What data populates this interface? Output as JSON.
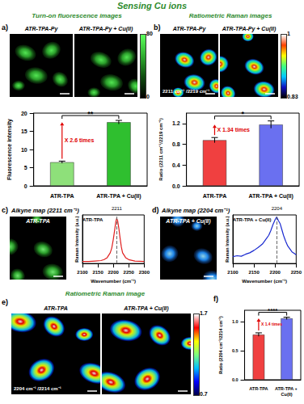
{
  "title": "Sensing Cu ions",
  "image_panels": [
    {
      "label": "a)",
      "heading": "Turn-on fluorescence images",
      "images": [
        {
          "caption": "ATR-TPA-Py"
        },
        {
          "caption": "ATR-TPA-Py + Cu(II)"
        }
      ],
      "colorbar": {
        "range": [
          0,
          80
        ],
        "ticks": [
          0,
          80
        ],
        "colors": [
          "#000000",
          "#0f4d0f",
          "#2fae2f",
          "#5cff5c"
        ]
      }
    },
    {
      "label": "b)",
      "heading": "Ratiometric Raman images",
      "images": [
        {
          "caption": "ATR-TPA-Py",
          "note": "2211 cm⁻¹ /2219 cm⁻¹"
        },
        {
          "caption": "ATR-TPA-Py + Cu(II)"
        }
      ],
      "colorbar": {
        "range": [
          0.83,
          1
        ],
        "ticks": [
          0.83,
          1
        ],
        "colors": [
          "#000000",
          "#1010c0",
          "#00c8ff",
          "#40ff80",
          "#ffff00",
          "#ff4000",
          "#ffffff"
        ]
      }
    },
    {
      "label": "c)",
      "heading": "Alkyne map (2211 cm⁻¹)",
      "images": [
        {
          "caption": "ATR-TPA"
        }
      ]
    },
    {
      "label": "d)",
      "heading": "Alkyne map (2204 cm⁻¹)",
      "images": [
        {
          "caption": "ATR-TPA + Cu(II)"
        }
      ]
    },
    {
      "label": "e)",
      "heading": "Ratiometric Raman image",
      "images": [
        {
          "caption": "ATR-TPA",
          "note": "2204 cm⁻¹ /2214 cm⁻¹"
        },
        {
          "caption": "ATR-TPA + Cu(II)"
        }
      ],
      "colorbar": {
        "range": [
          0.7,
          1.7
        ],
        "ticks": [
          0.7,
          1.7
        ],
        "colors": [
          "#00004a",
          "#0000ff",
          "#00bfff",
          "#7fff7f",
          "#ffff00",
          "#ff0000",
          "#ffffff"
        ]
      }
    }
  ],
  "chart_data": [
    {
      "type": "bar",
      "ylabel": "Fluorescence intensity",
      "categories": [
        "ATR-TPA",
        "ATR-TPA + Cu(II)"
      ],
      "values": [
        6.5,
        17.5
      ],
      "errors": [
        0.3,
        0.5
      ],
      "colors": [
        "#8ee07a",
        "#2fbf2f"
      ],
      "significance": "**",
      "fold_change_label": "X 2.6 times",
      "ylim": [
        0,
        20
      ],
      "yticks": [
        0,
        5,
        10,
        15,
        20
      ],
      "grid": false
    },
    {
      "type": "bar",
      "ylabel": "Ratio (2211 cm⁻¹/2219 cm⁻¹)",
      "categories": [
        "ATR-TPA",
        "ATR-TPA + Cu(II)"
      ],
      "values": [
        0.88,
        1.18
      ],
      "errors": [
        0.05,
        0.07
      ],
      "colors": [
        "#f04040",
        "#6a70f0"
      ],
      "significance": "*",
      "fold_change_label": "X 1.34 times",
      "ylim": [
        0,
        1.4
      ],
      "yticks": [
        {
          "value": 0,
          "label": "0.0"
        },
        {
          "value": 0.4,
          "label": "0.4"
        },
        {
          "value": 0.8,
          "label": "0.8"
        },
        {
          "value": 1.2,
          "label": "1.2"
        }
      ],
      "grid": false
    },
    {
      "type": "line",
      "xlabel": "Wavenumber (cm⁻¹)",
      "ylabel": "Raman Intensity (a.u.)",
      "x": [
        2100,
        2120,
        2140,
        2160,
        2170,
        2180,
        2190,
        2195,
        2200,
        2205,
        2208,
        2211,
        2214,
        2218,
        2222,
        2226,
        2230,
        2240,
        2250,
        2270,
        2300
      ],
      "series": [
        {
          "name": "ATR-TPA",
          "color": "#e02020",
          "values": [
            4,
            4,
            5,
            6,
            8,
            12,
            22,
            32,
            50,
            72,
            86,
            93,
            88,
            72,
            52,
            34,
            22,
            12,
            8,
            5,
            4
          ]
        }
      ],
      "peak": {
        "x": 2211,
        "label": "2211"
      },
      "xlim": [
        2100,
        2300
      ],
      "xticks": [
        2100,
        2150,
        2200,
        2250,
        2300
      ],
      "ylim": [
        0,
        100
      ],
      "tick_labels": "x",
      "grid": false
    },
    {
      "type": "line",
      "xlabel": "Wavenumber (cm⁻¹)",
      "ylabel": "Raman Intensity (a.u.)",
      "x": [
        2100,
        2110,
        2120,
        2130,
        2140,
        2150,
        2160,
        2170,
        2180,
        2185,
        2190,
        2195,
        2200,
        2204,
        2208,
        2212,
        2216,
        2220,
        2225,
        2230,
        2240,
        2250
      ],
      "series": [
        {
          "name": "ATR-TPA + Cu(II)",
          "color": "#1a2ad0",
          "values": [
            14,
            16,
            15,
            19,
            22,
            27,
            33,
            40,
            52,
            58,
            68,
            80,
            90,
            96,
            88,
            82,
            70,
            58,
            46,
            36,
            24,
            18
          ]
        }
      ],
      "peak": {
        "x": 2204,
        "label": "2204"
      },
      "xlim": [
        2100,
        2250
      ],
      "xticks": [
        2100,
        2150,
        2200,
        2250
      ],
      "ylim": [
        0,
        100
      ],
      "tick_labels": "x",
      "grid": false
    },
    {
      "type": "bar",
      "panel_label": "f)",
      "ylabel": "Ratio (2204 cm⁻¹/2214 cm⁻¹)",
      "categories": [
        "ATR-TPA",
        "ATR-TPA + Cu(II)"
      ],
      "values": [
        0.78,
        1.06
      ],
      "errors": [
        0.03,
        0.02
      ],
      "colors": [
        "#f04040",
        "#6a70f0"
      ],
      "significance": "****",
      "fold_change_label": "X 1.4 times",
      "ylim": [
        0,
        1.2
      ],
      "yticks": [
        {
          "value": 0,
          "label": "0.0"
        },
        {
          "value": 0.5,
          "label": "0.5"
        },
        {
          "value": 1,
          "label": "1.0"
        }
      ],
      "grid": false
    }
  ]
}
